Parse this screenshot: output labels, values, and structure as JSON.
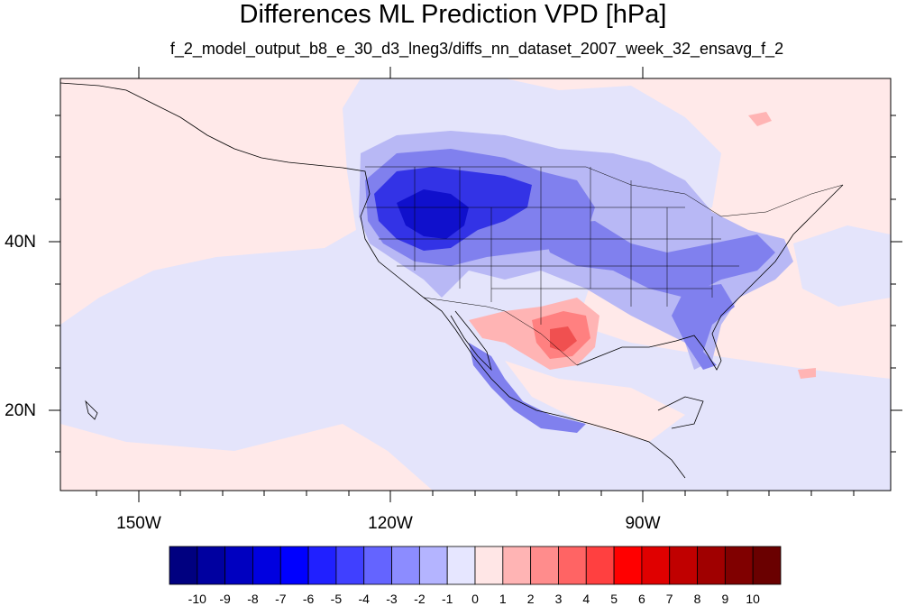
{
  "title": "Differences ML Prediction VPD [hPa]",
  "subtitle": "f_2_model_output_b8_e_30_d3_lneg3/diffs_nn_dataset_2007_week_32_ensavg_f_2",
  "lat_labels": [
    "40N",
    "20N"
  ],
  "lon_labels": [
    "150W",
    "120W",
    "90W"
  ],
  "colorbar": {
    "labels": [
      "-10",
      "-9",
      "-8",
      "-7",
      "-6",
      "-5",
      "-4",
      "-3",
      "-2",
      "-1",
      "0",
      "1",
      "2",
      "3",
      "4",
      "5",
      "6",
      "7",
      "8",
      "9",
      "10"
    ],
    "colors": [
      "#000080",
      "#0000a0",
      "#0000c0",
      "#0000e0",
      "#0000ff",
      "#2020ff",
      "#4040ff",
      "#6464ff",
      "#8c8cff",
      "#b4b4ff",
      "#e6e6ff",
      "#ffe6e6",
      "#ffb4b4",
      "#ff8c8c",
      "#ff6464",
      "#ff4040",
      "#ff0000",
      "#e00000",
      "#c00000",
      "#a00000",
      "#800000",
      "#6a0000"
    ]
  },
  "colors": {
    "ocean_positive": "#ffe9e9",
    "ocean_negative": "#e4e4fb",
    "light_blue": "#b8b8f5",
    "mid_blue": "#8080ee",
    "strong_blue": "#3333e6",
    "dark_blue": "#1010cc",
    "light_red": "#ffb4b4",
    "mid_red": "#ff8080",
    "strong_red": "#f05050"
  }
}
